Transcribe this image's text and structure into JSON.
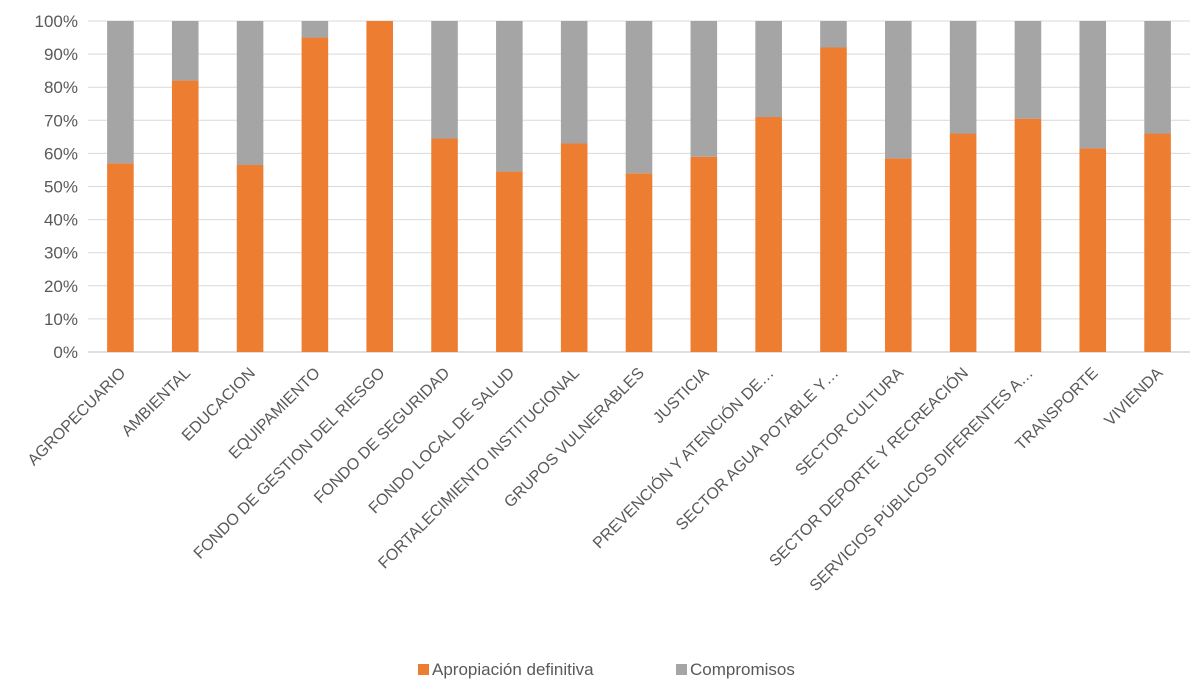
{
  "chart_data": {
    "type": "bar",
    "stacked": true,
    "normalized": true,
    "categories": [
      "AGROPECUARIO",
      "AMBIENTAL",
      "EDUCACION",
      "EQUIPAMIENTO",
      "FONDO DE GESTION DEL RIESGO",
      "FONDO DE SEGURIDAD",
      "FONDO LOCAL DE SALUD",
      "FORTALECIMIENTO INSTITUCIONAL",
      "GRUPOS VULNERABLES",
      "JUSTICIA",
      "PREVENCIÓN Y ATENCIÓN DE…",
      "SECTOR AGUA POTABLE Y…",
      "SECTOR CULTURA",
      "SECTOR DEPORTE Y RECREACIÓN",
      "SERVICIOS PÚBLICOS DIFERENTES A…",
      "TRANSPORTE",
      "VIVIENDA"
    ],
    "series": [
      {
        "name": "Apropiación definitiva",
        "color": "#ED7D31",
        "values": [
          57,
          82,
          56.5,
          95,
          100,
          64.5,
          54.5,
          63,
          54,
          59,
          71,
          92,
          58.5,
          66,
          70.5,
          61.5,
          66
        ]
      },
      {
        "name": "Compromisos",
        "color": "#A5A5A5",
        "values": [
          43,
          18,
          43.5,
          5,
          0,
          35.5,
          45.5,
          37,
          46,
          41,
          29,
          8,
          41.5,
          34,
          29.5,
          38.5,
          34
        ]
      }
    ],
    "ylim": [
      0,
      100
    ],
    "yticks": [
      "0%",
      "10%",
      "20%",
      "30%",
      "40%",
      "50%",
      "60%",
      "70%",
      "80%",
      "90%",
      "100%"
    ],
    "grid": true,
    "legend": "bottom"
  }
}
